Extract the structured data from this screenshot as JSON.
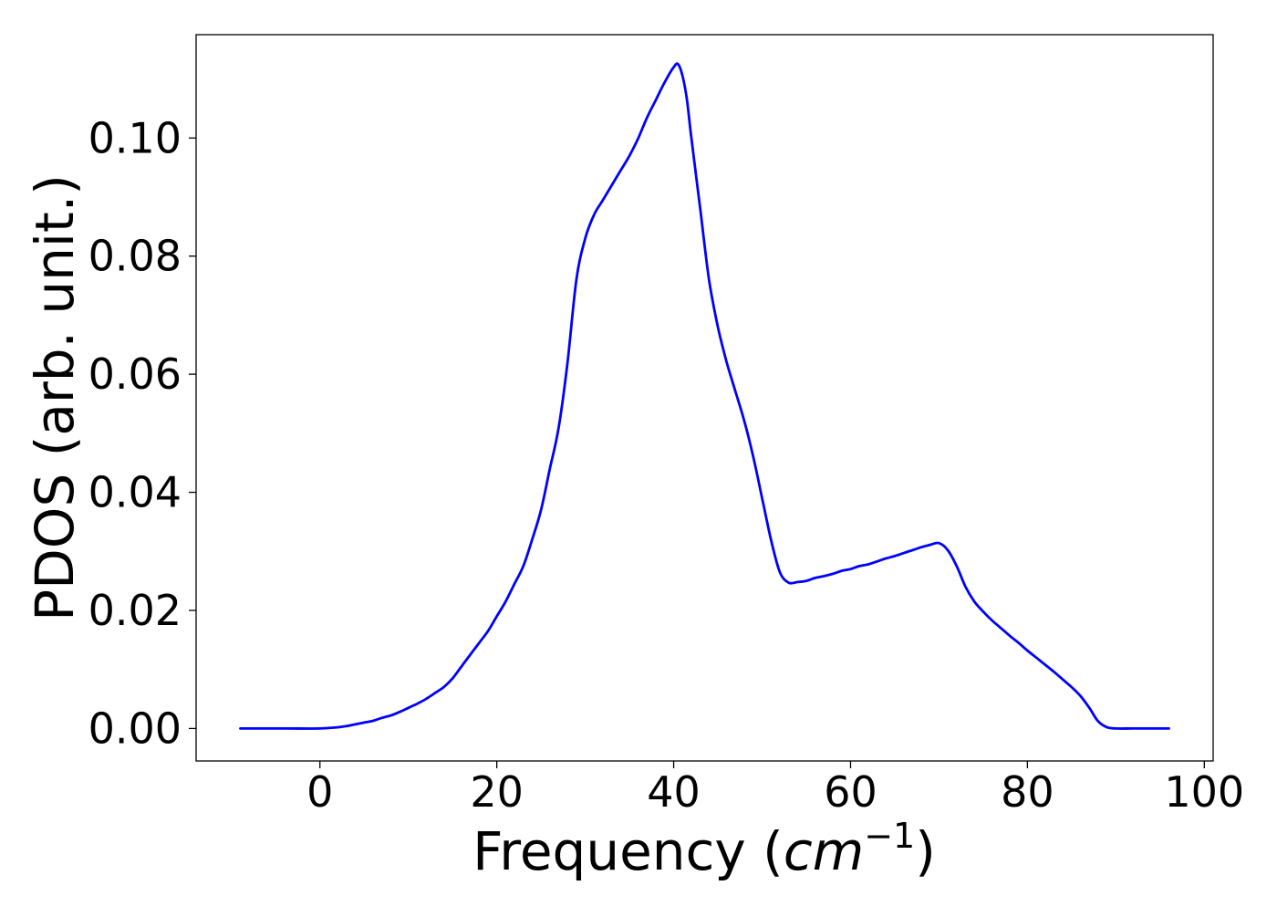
{
  "chart_data": {
    "type": "line",
    "title": "",
    "xlabel": "Frequency (cm⁻¹)",
    "xlabel_parts": {
      "prefix": "Frequency (",
      "base": "cm",
      "superscript": "−1",
      "suffix": ")"
    },
    "ylabel": "PDOS (arb. unit.)",
    "xlim": [
      -14,
      101
    ],
    "ylim": [
      -0.0055,
      0.1175
    ],
    "xticks": [
      0,
      20,
      40,
      60,
      80,
      100
    ],
    "xtick_labels": [
      "0",
      "20",
      "40",
      "60",
      "80",
      "100"
    ],
    "yticks": [
      0.0,
      0.02,
      0.04,
      0.06,
      0.08,
      0.1
    ],
    "ytick_labels": [
      "0.00",
      "0.02",
      "0.04",
      "0.06",
      "0.08",
      "0.10"
    ],
    "grid": false,
    "legend": false,
    "series": [
      {
        "color": "#0000ff",
        "x": [
          -9,
          -4,
          0,
          2,
          3,
          4,
          5,
          6,
          7,
          8,
          9,
          10,
          11,
          12,
          13,
          14,
          15,
          16,
          17,
          18,
          19,
          20,
          21,
          22,
          23,
          24,
          25,
          26,
          27,
          28,
          29,
          30,
          31,
          32,
          33,
          34,
          35,
          36,
          37,
          38,
          39,
          40,
          40.5,
          41,
          41.5,
          42,
          43,
          44,
          45,
          46,
          47,
          48,
          49,
          50,
          51,
          52,
          53,
          54,
          55,
          56,
          57,
          58,
          59,
          60,
          61,
          62,
          63,
          64,
          65,
          66,
          67,
          68,
          69,
          70,
          71,
          72,
          73,
          74,
          75,
          76,
          77,
          78,
          79,
          80,
          81,
          82,
          83,
          84,
          85,
          86,
          87,
          88,
          89,
          90,
          92,
          96
        ],
        "y": [
          0.0,
          0.0,
          0.0,
          0.0002,
          0.0004,
          0.0007,
          0.001,
          0.0013,
          0.0018,
          0.0022,
          0.0028,
          0.0035,
          0.0042,
          0.005,
          0.006,
          0.007,
          0.0085,
          0.0105,
          0.0125,
          0.0145,
          0.0165,
          0.019,
          0.0215,
          0.0245,
          0.0275,
          0.032,
          0.037,
          0.044,
          0.051,
          0.062,
          0.076,
          0.083,
          0.087,
          0.0895,
          0.092,
          0.0945,
          0.097,
          0.1,
          0.1035,
          0.1065,
          0.1095,
          0.112,
          0.1125,
          0.1105,
          0.1065,
          0.1,
          0.088,
          0.076,
          0.068,
          0.062,
          0.057,
          0.052,
          0.046,
          0.039,
          0.032,
          0.0265,
          0.0247,
          0.0248,
          0.025,
          0.0255,
          0.0258,
          0.0262,
          0.0267,
          0.027,
          0.0275,
          0.0278,
          0.0283,
          0.0288,
          0.0292,
          0.0297,
          0.0302,
          0.0307,
          0.0311,
          0.0314,
          0.0302,
          0.0275,
          0.024,
          0.0215,
          0.0198,
          0.0183,
          0.017,
          0.0157,
          0.0145,
          0.0132,
          0.012,
          0.0108,
          0.0096,
          0.0083,
          0.007,
          0.0055,
          0.0035,
          0.0012,
          0.0002,
          0.0,
          0.0,
          0.0
        ]
      }
    ]
  }
}
